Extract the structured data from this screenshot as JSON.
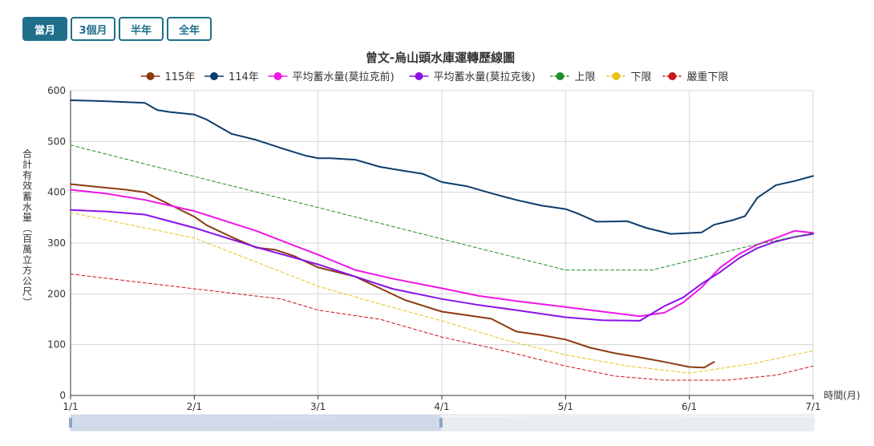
{
  "tabs": [
    {
      "label": "當月",
      "active": true
    },
    {
      "label": "3個月",
      "active": false
    },
    {
      "label": "半年",
      "active": false
    },
    {
      "label": "全年",
      "active": false
    }
  ],
  "chart_data": {
    "type": "line",
    "title": "曾文-烏山頭水庫運轉歷線圖",
    "xlabel": "時間(月)",
    "ylabel": "合計有效蓄水量（百萬立方公尺）",
    "ylim": [
      0,
      600
    ],
    "yticks": [
      0,
      100,
      200,
      300,
      400,
      500,
      600
    ],
    "xlim": [
      1,
      7
    ],
    "xticks": [
      {
        "label": "1/1",
        "value": 1
      },
      {
        "label": "2/1",
        "value": 2
      },
      {
        "label": "3/1",
        "value": 3
      },
      {
        "label": "4/1",
        "value": 4
      },
      {
        "label": "5/1",
        "value": 5
      },
      {
        "label": "6/1",
        "value": 6
      },
      {
        "label": "7/1",
        "value": 7
      }
    ],
    "grid": true,
    "legend": "top-center",
    "series": [
      {
        "name": "115年",
        "color": "#8b3a0f",
        "dash": false,
        "x": [
          1,
          1.2,
          1.45,
          1.6,
          1.8,
          2,
          2.1,
          2.3,
          2.5,
          2.65,
          2.8,
          3,
          3.1,
          3.3,
          3.5,
          3.7,
          4,
          4.2,
          4.4,
          4.6,
          4.8,
          5,
          5.2,
          5.4,
          5.6,
          5.8,
          6,
          6.12,
          6.2
        ],
        "y": [
          416,
          411,
          405,
          400,
          376,
          352,
          335,
          312,
          291,
          287,
          275,
          252,
          246,
          234,
          211,
          188,
          165,
          158,
          151,
          126,
          119,
          110,
          94,
          83,
          75,
          66,
          56,
          55,
          66
        ]
      },
      {
        "name": "114年",
        "color": "#0b3d6b",
        "dash": false,
        "x": [
          1,
          1.2,
          1.6,
          1.7,
          1.8,
          2,
          2.1,
          2.3,
          2.5,
          2.7,
          2.9,
          3,
          3.1,
          3.3,
          3.5,
          3.7,
          3.85,
          4,
          4.2,
          4.4,
          4.6,
          4.8,
          5,
          5.1,
          5.25,
          5.5,
          5.65,
          5.85,
          6.1,
          6.2,
          6.35,
          6.45,
          6.55,
          6.7,
          6.85,
          7
        ],
        "y": [
          581,
          580,
          576,
          562,
          558,
          553,
          543,
          515,
          503,
          487,
          472,
          467,
          467,
          464,
          450,
          442,
          436,
          420,
          412,
          398,
          385,
          374,
          367,
          358,
          342,
          343,
          330,
          318,
          321,
          336,
          345,
          353,
          389,
          414,
          422,
          432
        ]
      },
      {
        "name": "平均蓄水量(莫拉克前)",
        "color": "#ee16e6",
        "dash": false,
        "x": [
          1,
          1.3,
          1.6,
          2,
          2.5,
          3,
          3.3,
          3.6,
          4,
          4.3,
          4.6,
          5,
          5.3,
          5.6,
          5.8,
          5.95,
          6.1,
          6.25,
          6.4,
          6.55,
          6.7,
          6.85,
          7
        ],
        "y": [
          405,
          397,
          385,
          363,
          324,
          277,
          247,
          230,
          211,
          196,
          186,
          174,
          165,
          156,
          163,
          183,
          213,
          252,
          278,
          297,
          310,
          324,
          320
        ]
      },
      {
        "name": "平均蓄水量(莫拉克後)",
        "color": "#8a13e6",
        "dash": false,
        "x": [
          1,
          1.3,
          1.6,
          2,
          2.5,
          3,
          3.3,
          3.6,
          4,
          4.3,
          4.6,
          5,
          5.3,
          5.6,
          5.8,
          5.95,
          6.1,
          6.25,
          6.4,
          6.55,
          6.7,
          6.85,
          7
        ],
        "y": [
          365,
          362,
          356,
          330,
          292,
          258,
          234,
          210,
          190,
          178,
          168,
          154,
          148,
          147,
          176,
          193,
          220,
          243,
          270,
          290,
          303,
          312,
          318
        ]
      },
      {
        "name": "上限",
        "color": "#1e8f2b",
        "dash": true,
        "x": [
          1,
          2,
          3,
          4,
          5,
          5.7,
          6,
          6.5,
          7
        ],
        "y": [
          493,
          431,
          370,
          308,
          247,
          247,
          265,
          295,
          320
        ]
      },
      {
        "name": "下限",
        "color": "#e8c21a",
        "dash": true,
        "x": [
          1,
          2,
          3,
          3.5,
          4,
          4.5,
          5,
          5.5,
          6,
          6.5,
          7
        ],
        "y": [
          360,
          310,
          215,
          180,
          147,
          110,
          80,
          58,
          44,
          62,
          88
        ]
      },
      {
        "name": "嚴重下限",
        "color": "#c8161b",
        "dash": true,
        "x": [
          1,
          2,
          2.7,
          3,
          3.5,
          4,
          4.5,
          5,
          5.4,
          5.8,
          6,
          6.3,
          6.7,
          7
        ],
        "y": [
          239,
          210,
          190,
          168,
          150,
          115,
          88,
          58,
          38,
          30,
          30,
          30,
          40,
          58
        ]
      }
    ]
  }
}
